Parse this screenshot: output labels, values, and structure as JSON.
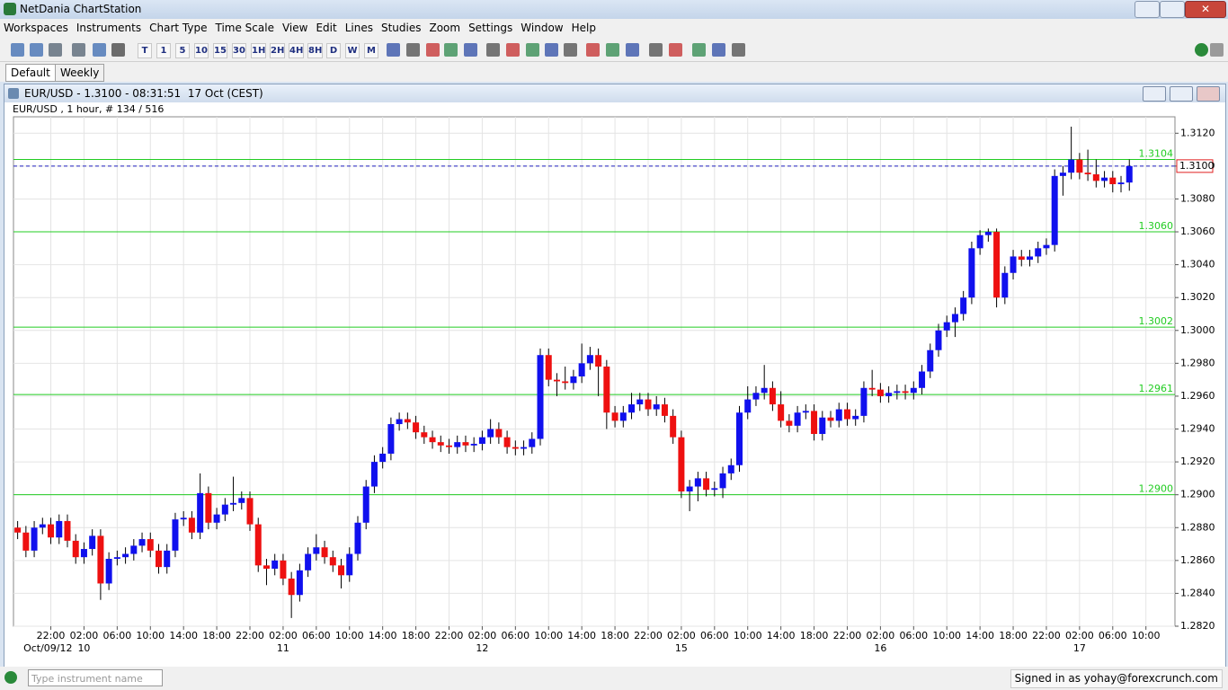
{
  "window": {
    "title": "NetDania ChartStation"
  },
  "menu": [
    "Workspaces",
    "Instruments",
    "Chart Type",
    "Time Scale",
    "View",
    "Edit",
    "Lines",
    "Studies",
    "Zoom",
    "Settings",
    "Window",
    "Help"
  ],
  "toolbar": {
    "periods": [
      "T",
      "1",
      "5",
      "10",
      "15",
      "30",
      "1H",
      "2H",
      "4H",
      "8H",
      "D",
      "W",
      "M"
    ]
  },
  "tabs": [
    "Default",
    "Weekly"
  ],
  "chart_window": {
    "title": "EUR/USD - 1.3100 - 08:31:51  17 Oct (CEST)"
  },
  "chart_data": {
    "type": "candlestick",
    "subtitle": "EUR/USD , 1 hour, # 134 / 516",
    "up_color": "#1010ee",
    "down_color": "#ee1010",
    "level_color": "#22cc22",
    "last_color": "#2020c0",
    "grid": true,
    "ylim": [
      1.282,
      1.313
    ],
    "xlim": [
      -0.5,
      139.5
    ],
    "yticks": [
      {
        "value": 1.282,
        "label": "1.2820"
      },
      {
        "value": 1.284,
        "label": "1.2840"
      },
      {
        "value": 1.286,
        "label": "1.2860"
      },
      {
        "value": 1.288,
        "label": "1.2880"
      },
      {
        "value": 1.29,
        "label": "1.2900"
      },
      {
        "value": 1.292,
        "label": "1.2920"
      },
      {
        "value": 1.294,
        "label": "1.2940"
      },
      {
        "value": 1.296,
        "label": "1.2960"
      },
      {
        "value": 1.298,
        "label": "1.2980"
      },
      {
        "value": 1.3,
        "label": "1.3000"
      },
      {
        "value": 1.302,
        "label": "1.3020"
      },
      {
        "value": 1.304,
        "label": "1.3040"
      },
      {
        "value": 1.306,
        "label": "1.3060"
      },
      {
        "value": 1.308,
        "label": "1.3080"
      },
      {
        "value": 1.31,
        "label": "1.3100"
      },
      {
        "value": 1.312,
        "label": "1.3120"
      }
    ],
    "xticks": [
      {
        "value": 4,
        "label": "22:00"
      },
      {
        "value": 8,
        "label": "02:00"
      },
      {
        "value": 12,
        "label": "06:00"
      },
      {
        "value": 16,
        "label": "10:00"
      },
      {
        "value": 20,
        "label": "14:00"
      },
      {
        "value": 24,
        "label": "18:00"
      },
      {
        "value": 28,
        "label": "22:00"
      },
      {
        "value": 32,
        "label": "02:00"
      },
      {
        "value": 36,
        "label": "06:00"
      },
      {
        "value": 40,
        "label": "10:00"
      },
      {
        "value": 44,
        "label": "14:00"
      },
      {
        "value": 48,
        "label": "18:00"
      },
      {
        "value": 52,
        "label": "22:00"
      },
      {
        "value": 56,
        "label": "02:00"
      },
      {
        "value": 60,
        "label": "06:00"
      },
      {
        "value": 64,
        "label": "10:00"
      },
      {
        "value": 68,
        "label": "14:00"
      },
      {
        "value": 72,
        "label": "18:00"
      },
      {
        "value": 76,
        "label": "22:00"
      },
      {
        "value": 80,
        "label": "02:00"
      },
      {
        "value": 84,
        "label": "06:00"
      },
      {
        "value": 88,
        "label": "10:00"
      },
      {
        "value": 92,
        "label": "14:00"
      },
      {
        "value": 96,
        "label": "18:00"
      },
      {
        "value": 100,
        "label": "22:00"
      },
      {
        "value": 104,
        "label": "02:00"
      },
      {
        "value": 108,
        "label": "06:00"
      },
      {
        "value": 112,
        "label": "10:00"
      },
      {
        "value": 116,
        "label": "14:00"
      },
      {
        "value": 120,
        "label": "18:00"
      },
      {
        "value": 124,
        "label": "22:00"
      },
      {
        "value": 128,
        "label": "02:00"
      },
      {
        "value": 132,
        "label": "06:00"
      },
      {
        "value": 136,
        "label": "10:00"
      }
    ],
    "day_ticks": [
      {
        "value": 4,
        "label": "Oct/09/12"
      },
      {
        "value": 8,
        "label": "10"
      },
      {
        "value": 32,
        "label": "11"
      },
      {
        "value": 56,
        "label": "12"
      },
      {
        "value": 80,
        "label": "15"
      },
      {
        "value": 104,
        "label": "16"
      },
      {
        "value": 128,
        "label": "17"
      }
    ],
    "levels": [
      {
        "value": 1.3104,
        "label": "1.3104"
      },
      {
        "value": 1.306,
        "label": "1.3060"
      },
      {
        "value": 1.3002,
        "label": "1.3002"
      },
      {
        "value": 1.2961,
        "label": "1.2961"
      },
      {
        "value": 1.29,
        "label": "1.2900"
      }
    ],
    "last_price": {
      "value": 1.31,
      "label": "1.3100"
    },
    "candles": [
      [
        1.288,
        1.2884,
        1.2873,
        1.2877
      ],
      [
        1.2877,
        1.2881,
        1.2862,
        1.2866
      ],
      [
        1.2866,
        1.2884,
        1.2862,
        1.288
      ],
      [
        1.288,
        1.2886,
        1.2876,
        1.2882
      ],
      [
        1.2882,
        1.2886,
        1.287,
        1.2874
      ],
      [
        1.2874,
        1.2888,
        1.287,
        1.2884
      ],
      [
        1.2884,
        1.2888,
        1.2868,
        1.2872
      ],
      [
        1.2872,
        1.2876,
        1.2858,
        1.2862
      ],
      [
        1.2862,
        1.2871,
        1.2858,
        1.2867
      ],
      [
        1.2867,
        1.2879,
        1.2863,
        1.2875
      ],
      [
        1.2875,
        1.2879,
        1.2836,
        1.2846
      ],
      [
        1.2846,
        1.2865,
        1.2842,
        1.2861
      ],
      [
        1.2861,
        1.2866,
        1.2857,
        1.2862
      ],
      [
        1.2862,
        1.2868,
        1.2858,
        1.2864
      ],
      [
        1.2864,
        1.2873,
        1.286,
        1.2869
      ],
      [
        1.2869,
        1.2877,
        1.2865,
        1.2873
      ],
      [
        1.2873,
        1.2877,
        1.2862,
        1.2866
      ],
      [
        1.2866,
        1.287,
        1.2852,
        1.2856
      ],
      [
        1.2856,
        1.287,
        1.2852,
        1.2866
      ],
      [
        1.2866,
        1.2889,
        1.2862,
        1.2885
      ],
      [
        1.2885,
        1.289,
        1.2881,
        1.2886
      ],
      [
        1.2886,
        1.289,
        1.2873,
        1.2877
      ],
      [
        1.2877,
        1.2913,
        1.2873,
        1.2901
      ],
      [
        1.2901,
        1.2905,
        1.2879,
        1.2883
      ],
      [
        1.2883,
        1.2892,
        1.2879,
        1.2888
      ],
      [
        1.2888,
        1.2898,
        1.2884,
        1.2894
      ],
      [
        1.2894,
        1.2911,
        1.289,
        1.2895
      ],
      [
        1.2895,
        1.2902,
        1.2891,
        1.2898
      ],
      [
        1.2898,
        1.2902,
        1.2878,
        1.2882
      ],
      [
        1.2882,
        1.2886,
        1.2853,
        1.2857
      ],
      [
        1.2857,
        1.2861,
        1.2845,
        1.2855
      ],
      [
        1.2855,
        1.2864,
        1.2851,
        1.286
      ],
      [
        1.286,
        1.2864,
        1.2845,
        1.2849
      ],
      [
        1.2849,
        1.2853,
        1.2825,
        1.2839
      ],
      [
        1.2839,
        1.2858,
        1.2835,
        1.2854
      ],
      [
        1.2854,
        1.2868,
        1.285,
        1.2864
      ],
      [
        1.2864,
        1.2876,
        1.286,
        1.2868
      ],
      [
        1.2868,
        1.2872,
        1.2858,
        1.2862
      ],
      [
        1.2862,
        1.2866,
        1.2853,
        1.2857
      ],
      [
        1.2857,
        1.2861,
        1.2843,
        1.2851
      ],
      [
        1.2851,
        1.2868,
        1.2847,
        1.2864
      ],
      [
        1.2864,
        1.2887,
        1.286,
        1.2883
      ],
      [
        1.2883,
        1.2909,
        1.2879,
        1.2905
      ],
      [
        1.2905,
        1.2924,
        1.2901,
        1.292
      ],
      [
        1.292,
        1.2929,
        1.2916,
        1.2925
      ],
      [
        1.2925,
        1.2947,
        1.2921,
        1.2943
      ],
      [
        1.2943,
        1.295,
        1.2939,
        1.2946
      ],
      [
        1.2946,
        1.295,
        1.294,
        1.2944
      ],
      [
        1.2944,
        1.2948,
        1.2934,
        1.2938
      ],
      [
        1.2938,
        1.2942,
        1.2931,
        1.2935
      ],
      [
        1.2935,
        1.2939,
        1.2928,
        1.2932
      ],
      [
        1.2932,
        1.2936,
        1.2926,
        1.293
      ],
      [
        1.293,
        1.2934,
        1.2925,
        1.2929
      ],
      [
        1.2929,
        1.2936,
        1.2925,
        1.2932
      ],
      [
        1.2932,
        1.2936,
        1.2926,
        1.293
      ],
      [
        1.293,
        1.2935,
        1.2926,
        1.2931
      ],
      [
        1.2931,
        1.2939,
        1.2927,
        1.2935
      ],
      [
        1.2935,
        1.2946,
        1.2931,
        1.294
      ],
      [
        1.294,
        1.2944,
        1.2931,
        1.2935
      ],
      [
        1.2935,
        1.2939,
        1.2925,
        1.2929
      ],
      [
        1.2929,
        1.2933,
        1.2924,
        1.2928
      ],
      [
        1.2928,
        1.2933,
        1.2924,
        1.2929
      ],
      [
        1.2929,
        1.2938,
        1.2925,
        1.2934
      ],
      [
        1.2934,
        1.2989,
        1.293,
        1.2985
      ],
      [
        1.2985,
        1.2989,
        1.2966,
        1.297
      ],
      [
        1.297,
        1.2974,
        1.296,
        1.2969
      ],
      [
        1.2969,
        1.2978,
        1.2964,
        1.2968
      ],
      [
        1.2968,
        1.2976,
        1.2964,
        1.2972
      ],
      [
        1.2972,
        1.2992,
        1.2968,
        1.298
      ],
      [
        1.298,
        1.299,
        1.2976,
        1.2985
      ],
      [
        1.2985,
        1.2989,
        1.296,
        1.2978
      ],
      [
        1.2978,
        1.2982,
        1.294,
        1.295
      ],
      [
        1.295,
        1.2954,
        1.2941,
        1.2945
      ],
      [
        1.2945,
        1.2954,
        1.2941,
        1.295
      ],
      [
        1.295,
        1.2962,
        1.2946,
        1.2955
      ],
      [
        1.2955,
        1.2962,
        1.2951,
        1.2958
      ],
      [
        1.2958,
        1.2962,
        1.2948,
        1.2952
      ],
      [
        1.2952,
        1.296,
        1.2948,
        1.2955
      ],
      [
        1.2955,
        1.2959,
        1.2944,
        1.2948
      ],
      [
        1.2948,
        1.2952,
        1.2931,
        1.2935
      ],
      [
        1.2935,
        1.2939,
        1.2898,
        1.2902
      ],
      [
        1.2902,
        1.2909,
        1.289,
        1.2905
      ],
      [
        1.2905,
        1.2914,
        1.2896,
        1.291
      ],
      [
        1.291,
        1.2914,
        1.2899,
        1.2903
      ],
      [
        1.2903,
        1.2908,
        1.2899,
        1.2904
      ],
      [
        1.2904,
        1.2917,
        1.2898,
        1.2913
      ],
      [
        1.2913,
        1.2922,
        1.2909,
        1.2918
      ],
      [
        1.2918,
        1.2954,
        1.2914,
        1.295
      ],
      [
        1.295,
        1.2966,
        1.2946,
        1.2958
      ],
      [
        1.2958,
        1.2966,
        1.2954,
        1.2962
      ],
      [
        1.2962,
        1.2979,
        1.2958,
        1.2965
      ],
      [
        1.2965,
        1.2969,
        1.2951,
        1.2955
      ],
      [
        1.2955,
        1.2963,
        1.2941,
        1.2945
      ],
      [
        1.2945,
        1.2949,
        1.2938,
        1.2942
      ],
      [
        1.2942,
        1.2954,
        1.2938,
        1.295
      ],
      [
        1.295,
        1.2955,
        1.2946,
        1.2951
      ],
      [
        1.2951,
        1.2955,
        1.2933,
        1.2937
      ],
      [
        1.2937,
        1.2951,
        1.2933,
        1.2947
      ],
      [
        1.2947,
        1.2951,
        1.2941,
        1.2945
      ],
      [
        1.2945,
        1.2956,
        1.2941,
        1.2952
      ],
      [
        1.2952,
        1.2956,
        1.2942,
        1.2946
      ],
      [
        1.2946,
        1.2952,
        1.2942,
        1.2948
      ],
      [
        1.2948,
        1.2969,
        1.2944,
        1.2965
      ],
      [
        1.2965,
        1.2976,
        1.296,
        1.2964
      ],
      [
        1.2964,
        1.2968,
        1.2956,
        1.296
      ],
      [
        1.296,
        1.2966,
        1.2956,
        1.2962
      ],
      [
        1.2962,
        1.2967,
        1.2958,
        1.2963
      ],
      [
        1.2963,
        1.2967,
        1.2958,
        1.2962
      ],
      [
        1.2962,
        1.2969,
        1.2958,
        1.2965
      ],
      [
        1.2965,
        1.2979,
        1.2961,
        1.2975
      ],
      [
        1.2975,
        1.2992,
        1.2971,
        1.2988
      ],
      [
        1.2988,
        1.3004,
        1.2984,
        1.3
      ],
      [
        1.3,
        1.3009,
        1.2996,
        1.3005
      ],
      [
        1.3005,
        1.3014,
        1.2996,
        1.301
      ],
      [
        1.301,
        1.3024,
        1.3006,
        1.302
      ],
      [
        1.302,
        1.3054,
        1.3016,
        1.305
      ],
      [
        1.305,
        1.3061,
        1.3046,
        1.3058
      ],
      [
        1.3058,
        1.3062,
        1.3054,
        1.306
      ],
      [
        1.306,
        1.3062,
        1.3014,
        1.302
      ],
      [
        1.302,
        1.3039,
        1.3016,
        1.3035
      ],
      [
        1.3035,
        1.3049,
        1.3031,
        1.3045
      ],
      [
        1.3045,
        1.3049,
        1.3039,
        1.3043
      ],
      [
        1.3043,
        1.3049,
        1.3039,
        1.3045
      ],
      [
        1.3045,
        1.3054,
        1.3041,
        1.305
      ],
      [
        1.305,
        1.3056,
        1.3046,
        1.3052
      ],
      [
        1.3052,
        1.3098,
        1.3048,
        1.3094
      ],
      [
        1.3094,
        1.31,
        1.3082,
        1.3096
      ],
      [
        1.3096,
        1.3124,
        1.3092,
        1.3104
      ],
      [
        1.3104,
        1.3108,
        1.3092,
        1.3096
      ],
      [
        1.3096,
        1.311,
        1.3091,
        1.3095
      ],
      [
        1.3095,
        1.3104,
        1.3087,
        1.3091
      ],
      [
        1.3091,
        1.3097,
        1.3087,
        1.3093
      ],
      [
        1.3093,
        1.3097,
        1.3084,
        1.3089
      ],
      [
        1.3089,
        1.3094,
        1.3084,
        1.309
      ],
      [
        1.309,
        1.3104,
        1.3085,
        1.31
      ]
    ]
  },
  "status": {
    "input_placeholder": "Type instrument name",
    "signed_in": "Signed in as yohay@forexcrunch.com"
  }
}
